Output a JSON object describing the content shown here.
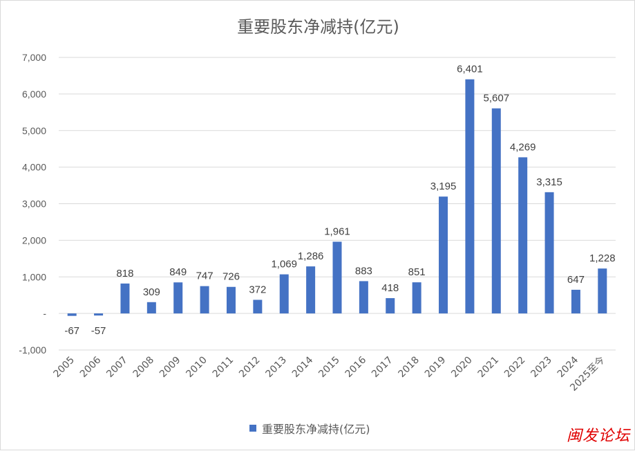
{
  "chart_data": {
    "type": "bar",
    "title": "重要股东净减持(亿元)",
    "categories": [
      "2005",
      "2006",
      "2007",
      "2008",
      "2009",
      "2010",
      "2011",
      "2012",
      "2013",
      "2014",
      "2015",
      "2016",
      "2017",
      "2018",
      "2019",
      "2020",
      "2021",
      "2022",
      "2023",
      "2024",
      "2025至今"
    ],
    "series": [
      {
        "name": "重要股东净减持(亿元)",
        "values": [
          -67,
          -57,
          818,
          309,
          849,
          747,
          726,
          372,
          1069,
          1286,
          1961,
          883,
          418,
          851,
          3195,
          6401,
          5607,
          4269,
          3315,
          647,
          1228
        ],
        "labels": [
          "-67",
          "-57",
          "818",
          "309",
          "849",
          "747",
          "726",
          "372",
          "1,069",
          "1,286",
          "1,961",
          "883",
          "418",
          "851",
          "3,195",
          "6,401",
          "5,607",
          "4,269",
          "3,315",
          "647",
          "1,228"
        ]
      }
    ],
    "ylim": [
      -1000,
      7000
    ],
    "yticks": [
      -1000,
      0,
      1000,
      2000,
      3000,
      4000,
      5000,
      6000,
      7000
    ],
    "ytick_labels": [
      "-1,000",
      "-",
      "1,000",
      "2,000",
      "3,000",
      "4,000",
      "5,000",
      "6,000",
      "7,000"
    ],
    "xlabel": "",
    "ylabel": "",
    "grid": true,
    "legend_position": "bottom"
  },
  "colors": {
    "bar": "#4472c4",
    "grid": "#d9d9d9",
    "text": "#595959",
    "label": "#404040",
    "watermark": "#e00000"
  },
  "watermark": "闽发论坛"
}
